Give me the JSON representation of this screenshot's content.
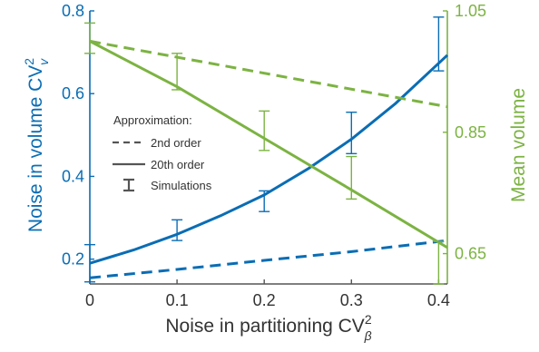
{
  "chart_data": {
    "type": "line",
    "title": "",
    "xlabel": "Noise in partitioning CV",
    "xlabel_sup": "2",
    "xlabel_sub": "β",
    "ylabel_left": "Noise in volume CV",
    "ylabel_left_sup": "2",
    "ylabel_left_sub": "v",
    "ylabel_right": "Mean volume",
    "xlim": [
      0,
      0.41
    ],
    "ylim_left": [
      0.14,
      0.8
    ],
    "ylim_right": [
      0.6,
      1.05
    ],
    "xticks": [
      "0",
      "0.1",
      "0.2",
      "0.3",
      "0.4"
    ],
    "xtick_values": [
      0,
      0.1,
      0.2,
      0.3,
      0.4
    ],
    "yticks_left": [
      "0.2",
      "0.4",
      "0.6",
      "0.8"
    ],
    "ytick_left_values": [
      0.2,
      0.4,
      0.6,
      0.8
    ],
    "yticks_right": [
      "0.65",
      "0.85",
      "1.05"
    ],
    "ytick_right_values": [
      0.65,
      0.85,
      1.05
    ],
    "colors": {
      "blue": "#0a6db4",
      "green": "#7cb342",
      "gray": "#555555"
    },
    "legend": {
      "title": "Approximation:",
      "entries": [
        {
          "label": "2nd order",
          "style": "dashed"
        },
        {
          "label": "20th order",
          "style": "solid"
        },
        {
          "label": "Simulations",
          "style": "errorbar"
        }
      ]
    },
    "series": [
      {
        "axis": "left",
        "color": "blue",
        "style": "dashed",
        "x": [
          0,
          0.1,
          0.2,
          0.3,
          0.41
        ],
        "y": [
          0.155,
          0.175,
          0.197,
          0.218,
          0.245
        ]
      },
      {
        "axis": "left",
        "color": "blue",
        "style": "solid",
        "x": [
          0,
          0.05,
          0.1,
          0.15,
          0.2,
          0.25,
          0.3,
          0.35,
          0.41
        ],
        "y": [
          0.19,
          0.222,
          0.26,
          0.305,
          0.355,
          0.418,
          0.49,
          0.575,
          0.693
        ]
      },
      {
        "axis": "right",
        "color": "green",
        "style": "dashed",
        "x": [
          0,
          0.41
        ],
        "y": [
          1.0,
          0.892
        ]
      },
      {
        "axis": "right",
        "color": "green",
        "style": "solid",
        "x": [
          0,
          0.1,
          0.2,
          0.3,
          0.41
        ],
        "y": [
          1.0,
          0.925,
          0.84,
          0.755,
          0.66
        ]
      }
    ],
    "error_bars": [
      {
        "axis": "left",
        "color": "blue",
        "x": 0,
        "low": 0.145,
        "high": 0.235
      },
      {
        "axis": "left",
        "color": "blue",
        "x": 0.1,
        "low": 0.245,
        "high": 0.295
      },
      {
        "axis": "left",
        "color": "blue",
        "x": 0.2,
        "low": 0.315,
        "high": 0.365
      },
      {
        "axis": "left",
        "color": "blue",
        "x": 0.3,
        "low": 0.455,
        "high": 0.555
      },
      {
        "axis": "left",
        "color": "blue",
        "x": 0.4,
        "low": 0.655,
        "high": 0.785
      },
      {
        "axis": "right",
        "color": "green",
        "x": 0,
        "low": 0.98,
        "high": 1.03
      },
      {
        "axis": "right",
        "color": "green",
        "x": 0.1,
        "low": 0.92,
        "high": 0.98
      },
      {
        "axis": "right",
        "color": "green",
        "x": 0.2,
        "low": 0.82,
        "high": 0.885
      },
      {
        "axis": "right",
        "color": "green",
        "x": 0.3,
        "low": 0.74,
        "high": 0.81
      },
      {
        "axis": "right",
        "color": "green",
        "x": 0.4,
        "low": 0.6,
        "high": 0.67
      }
    ]
  }
}
